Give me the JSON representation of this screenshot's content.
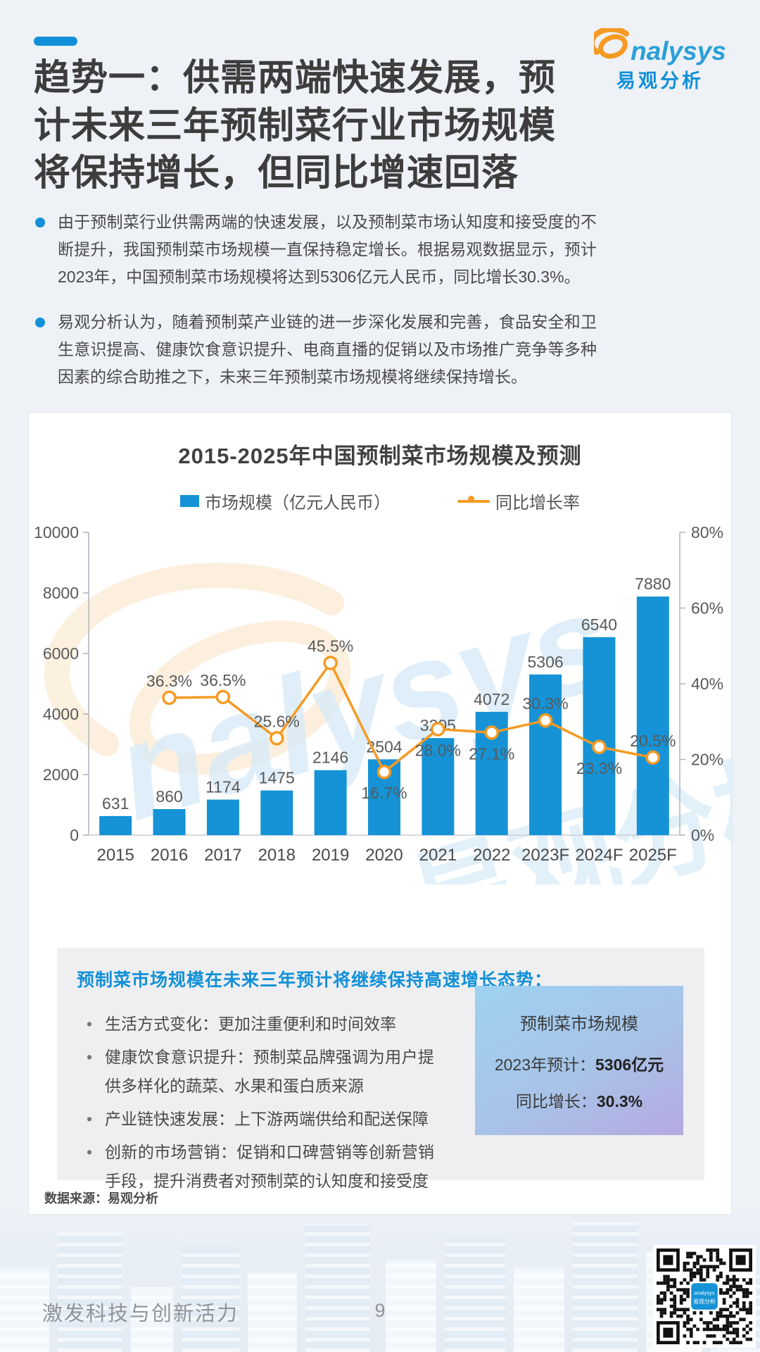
{
  "header": {
    "title": "趋势一：供需两端快速发展，预计未来三年预制菜行业市场规模将保持增长，但同比增速回落",
    "logo_word": "nalysys",
    "logo_cn": "易观分析"
  },
  "bullets": [
    {
      "text": "由于预制菜行业供需两端的快速发展，以及预制菜市场认知度和接受度的不断提升，我国预制菜市场规模一直保持稳定增长。根据易观数据显示，预计2023年，中国预制菜市场规模将达到5306亿元人民币，同比增长30.3%。"
    },
    {
      "text": "易观分析认为，随着预制菜产业链的进一步深化发展和完善，食品安全和卫生意识提高、健康饮食意识提升、电商直播的促销以及市场推广竞争等多种因素的综合助推之下，未来三年预制菜市场规模将继续保持增长。"
    }
  ],
  "chart_card": {
    "title": "2015-2025年中国预制菜市场规模及预测",
    "legend_bar": "市场规模（亿元人民币）",
    "legend_line": "同比增长率",
    "source": "数据来源：易观分析"
  },
  "chart_data": {
    "type": "bar",
    "title": "2015-2025年中国预制菜市场规模及预测",
    "categories": [
      "2015",
      "2016",
      "2017",
      "2018",
      "2019",
      "2020",
      "2021",
      "2022",
      "2023F",
      "2024F",
      "2025F"
    ],
    "series": [
      {
        "name": "市场规模（亿元人民币）",
        "type": "bar",
        "values": [
          631,
          860,
          1174,
          1475,
          2146,
          2504,
          3205,
          4072,
          5306,
          6540,
          7880
        ]
      },
      {
        "name": "同比增长率",
        "type": "line",
        "values": [
          null,
          36.3,
          36.5,
          25.6,
          45.5,
          16.7,
          28.0,
          27.1,
          30.3,
          23.3,
          20.5
        ]
      }
    ],
    "growth_labels": [
      "",
      "36.3%",
      "36.5%",
      "25.6%",
      "45.5%",
      "16.7%",
      "28.0%",
      "27.1%",
      "30.3%",
      "23.3%",
      "20.5%"
    ],
    "growth_label_side": [
      "",
      "above",
      "above",
      "above",
      "above",
      "below",
      "below",
      "below",
      "above",
      "below",
      "above"
    ],
    "y_left": {
      "min": 0,
      "max": 10000,
      "ticks": [
        0,
        2000,
        4000,
        6000,
        8000,
        10000
      ]
    },
    "y_right": {
      "min": 0,
      "max": 80,
      "ticks": [
        0,
        20,
        40,
        60,
        80
      ],
      "suffix": "%"
    },
    "legend_position": "top",
    "grid": false,
    "colors": {
      "bar": "#1593d6",
      "line": "#f59a23",
      "tick_text": "#595959",
      "axis": "#aeb4ba"
    }
  },
  "insight_box": {
    "headline": "预制菜市场规模在未来三年预计将继续保持高速增长态势：",
    "points": [
      "生活方式变化：更加注重便利和时间效率",
      "健康饮食意识提升：预制菜品牌强调为用户提供多样化的蔬菜、水果和蛋白质来源",
      "产业链快速发展：上下游两端供给和配送保障",
      "创新的市场营销：促销和口碑营销等创新营销手段，提升消费者对预制菜的认知度和接受度"
    ],
    "highlight_card": {
      "title": "预制菜市场规模",
      "line1_label": "2023年预计：",
      "line1_value": "5306亿元",
      "line2_label": "同比增长：",
      "line2_value": "30.3%"
    }
  },
  "footer": {
    "slogan": "激发科技与创新活力",
    "page_number": "9"
  }
}
